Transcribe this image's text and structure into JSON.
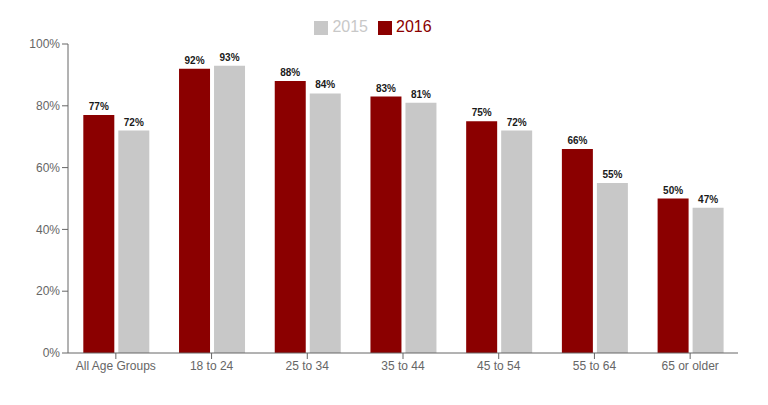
{
  "chart_data": {
    "type": "bar",
    "categories": [
      "All Age Groups",
      "18 to 24",
      "25 to 34",
      "35 to 44",
      "45 to 54",
      "55 to 64",
      "65 or older"
    ],
    "series": [
      {
        "name": "2016",
        "color": "#8B0000",
        "values": [
          77,
          92,
          88,
          83,
          75,
          66,
          50
        ],
        "value_labels": [
          "77%",
          "92%",
          "88%",
          "83%",
          "75%",
          "66%",
          "50%"
        ]
      },
      {
        "name": "2015",
        "color": "#C8C8C8",
        "values": [
          72,
          93,
          84,
          81,
          72,
          55,
          47
        ],
        "value_labels": [
          "72%",
          "93%",
          "84%",
          "81%",
          "72%",
          "55%",
          "47%"
        ]
      }
    ],
    "ylim": [
      0,
      100
    ],
    "yticks": [
      {
        "value": 0,
        "label": "0%"
      },
      {
        "value": 20,
        "label": "20%"
      },
      {
        "value": 40,
        "label": "40%"
      },
      {
        "value": 60,
        "label": "60%"
      },
      {
        "value": 80,
        "label": "80%"
      },
      {
        "value": 100,
        "label": "100%"
      }
    ],
    "grid": false,
    "legend": "top",
    "data_labels": true
  }
}
